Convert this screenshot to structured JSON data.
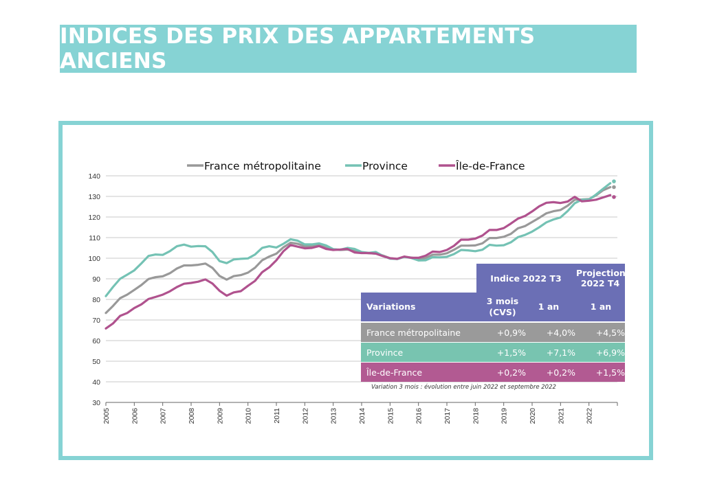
{
  "page": {
    "title": "INDICES DES PRIX DES APPARTEMENTS ANCIENS"
  },
  "colors": {
    "accent": "#86d3d4",
    "table_header": "#6b6fb5"
  },
  "chart_data": {
    "type": "line",
    "title": "",
    "xlabel": "",
    "ylabel": "",
    "x_ticks": [
      "2005",
      "2006",
      "2007",
      "2008",
      "2009",
      "2010",
      "2011",
      "2012",
      "2013",
      "2014",
      "2015",
      "2016",
      "2017",
      "2018",
      "2019",
      "2020",
      "2021",
      "2022"
    ],
    "y_ticks": [
      "30",
      "40",
      "50",
      "60",
      "70",
      "80",
      "90",
      "100",
      "110",
      "120",
      "130",
      "140"
    ],
    "xlim": [
      2005,
      2023
    ],
    "ylim": [
      30,
      140
    ],
    "grid": true,
    "legend_position": "top",
    "series": [
      {
        "name": "France métropolitaine",
        "color": "#999999",
        "points": [
          [
            2005.0,
            73.4
          ],
          [
            2005.25,
            76.8
          ],
          [
            2005.5,
            80.6
          ],
          [
            2005.75,
            82.3
          ],
          [
            2006.0,
            84.6
          ],
          [
            2006.25,
            87.0
          ],
          [
            2006.5,
            89.9
          ],
          [
            2006.75,
            90.8
          ],
          [
            2007.0,
            91.2
          ],
          [
            2007.25,
            92.7
          ],
          [
            2007.5,
            95.0
          ],
          [
            2007.75,
            96.5
          ],
          [
            2008.0,
            96.5
          ],
          [
            2008.25,
            96.8
          ],
          [
            2008.5,
            97.4
          ],
          [
            2008.75,
            95.3
          ],
          [
            2009.0,
            91.4
          ],
          [
            2009.25,
            89.6
          ],
          [
            2009.5,
            91.3
          ],
          [
            2009.75,
            91.8
          ],
          [
            2010.0,
            93.0
          ],
          [
            2010.25,
            95.4
          ],
          [
            2010.5,
            99.0
          ],
          [
            2010.75,
            100.8
          ],
          [
            2011.0,
            102.2
          ],
          [
            2011.25,
            105.3
          ],
          [
            2011.5,
            107.5
          ],
          [
            2011.75,
            107.0
          ],
          [
            2012.0,
            105.8
          ],
          [
            2012.25,
            105.8
          ],
          [
            2012.5,
            106.2
          ],
          [
            2012.75,
            105.1
          ],
          [
            2013.0,
            104.3
          ],
          [
            2013.25,
            104.0
          ],
          [
            2013.5,
            104.2
          ],
          [
            2013.75,
            103.5
          ],
          [
            2014.0,
            102.8
          ],
          [
            2014.25,
            102.4
          ],
          [
            2014.5,
            102.3
          ],
          [
            2014.75,
            101.3
          ],
          [
            2015.0,
            100.0
          ],
          [
            2015.25,
            99.6
          ],
          [
            2015.5,
            100.7
          ],
          [
            2015.75,
            100.3
          ],
          [
            2016.0,
            99.7
          ],
          [
            2016.25,
            100.1
          ],
          [
            2016.5,
            101.7
          ],
          [
            2016.75,
            101.7
          ],
          [
            2017.0,
            102.4
          ],
          [
            2017.25,
            104.1
          ],
          [
            2017.5,
            106.1
          ],
          [
            2017.75,
            106.1
          ],
          [
            2018.0,
            106.2
          ],
          [
            2018.25,
            107.2
          ],
          [
            2018.5,
            109.8
          ],
          [
            2018.75,
            109.8
          ],
          [
            2019.0,
            110.4
          ],
          [
            2019.25,
            111.8
          ],
          [
            2019.5,
            114.5
          ],
          [
            2019.75,
            115.6
          ],
          [
            2020.0,
            117.6
          ],
          [
            2020.25,
            119.6
          ],
          [
            2020.5,
            121.8
          ],
          [
            2020.75,
            122.8
          ],
          [
            2021.0,
            123.4
          ],
          [
            2021.25,
            125.5
          ],
          [
            2021.5,
            128.4
          ],
          [
            2021.75,
            128.5
          ],
          [
            2022.0,
            128.7
          ],
          [
            2022.25,
            130.5
          ],
          [
            2022.5,
            133.0
          ],
          [
            2022.75,
            134.5
          ]
        ]
      },
      {
        "name": "Province",
        "color": "#74c2b4",
        "points": [
          [
            2005.0,
            81.6
          ],
          [
            2005.25,
            86.0
          ],
          [
            2005.5,
            90.0
          ],
          [
            2005.75,
            92.0
          ],
          [
            2006.0,
            94.1
          ],
          [
            2006.25,
            97.5
          ],
          [
            2006.5,
            101.1
          ],
          [
            2006.75,
            101.8
          ],
          [
            2007.0,
            101.6
          ],
          [
            2007.25,
            103.4
          ],
          [
            2007.5,
            105.8
          ],
          [
            2007.75,
            106.6
          ],
          [
            2008.0,
            105.6
          ],
          [
            2008.25,
            105.9
          ],
          [
            2008.5,
            105.8
          ],
          [
            2008.75,
            103.0
          ],
          [
            2009.0,
            98.6
          ],
          [
            2009.25,
            97.6
          ],
          [
            2009.5,
            99.4
          ],
          [
            2009.75,
            99.7
          ],
          [
            2010.0,
            99.9
          ],
          [
            2010.25,
            101.8
          ],
          [
            2010.5,
            105.0
          ],
          [
            2010.75,
            105.8
          ],
          [
            2011.0,
            105.2
          ],
          [
            2011.25,
            107.0
          ],
          [
            2011.5,
            109.2
          ],
          [
            2011.75,
            108.5
          ],
          [
            2012.0,
            106.7
          ],
          [
            2012.25,
            106.7
          ],
          [
            2012.5,
            107.2
          ],
          [
            2012.75,
            106.2
          ],
          [
            2013.0,
            104.4
          ],
          [
            2013.25,
            104.1
          ],
          [
            2013.5,
            105.0
          ],
          [
            2013.75,
            104.5
          ],
          [
            2014.0,
            103.0
          ],
          [
            2014.25,
            102.6
          ],
          [
            2014.5,
            103.0
          ],
          [
            2014.75,
            101.1
          ],
          [
            2015.0,
            99.8
          ],
          [
            2015.25,
            99.6
          ],
          [
            2015.5,
            100.6
          ],
          [
            2015.75,
            100.1
          ],
          [
            2016.0,
            98.9
          ],
          [
            2016.25,
            99.0
          ],
          [
            2016.5,
            100.5
          ],
          [
            2016.75,
            100.4
          ],
          [
            2017.0,
            100.7
          ],
          [
            2017.25,
            102.0
          ],
          [
            2017.5,
            104.0
          ],
          [
            2017.75,
            103.8
          ],
          [
            2018.0,
            103.4
          ],
          [
            2018.25,
            104.1
          ],
          [
            2018.5,
            106.5
          ],
          [
            2018.75,
            106.1
          ],
          [
            2019.0,
            106.3
          ],
          [
            2019.25,
            107.7
          ],
          [
            2019.5,
            110.2
          ],
          [
            2019.75,
            111.3
          ],
          [
            2020.0,
            112.9
          ],
          [
            2020.25,
            115.0
          ],
          [
            2020.5,
            117.4
          ],
          [
            2020.75,
            118.8
          ],
          [
            2021.0,
            119.8
          ],
          [
            2021.25,
            122.9
          ],
          [
            2021.5,
            126.7
          ],
          [
            2021.75,
            128.4
          ],
          [
            2022.0,
            128.5
          ],
          [
            2022.25,
            130.9
          ],
          [
            2022.5,
            133.7
          ],
          [
            2022.75,
            136.4
          ]
        ]
      },
      {
        "name": "Île-de-France",
        "color": "#b0528e",
        "points": [
          [
            2005.0,
            65.9
          ],
          [
            2005.25,
            68.3
          ],
          [
            2005.5,
            72.0
          ],
          [
            2005.75,
            73.4
          ],
          [
            2006.0,
            75.8
          ],
          [
            2006.25,
            77.6
          ],
          [
            2006.5,
            80.2
          ],
          [
            2006.75,
            81.2
          ],
          [
            2007.0,
            82.3
          ],
          [
            2007.25,
            83.9
          ],
          [
            2007.5,
            86.0
          ],
          [
            2007.75,
            87.6
          ],
          [
            2008.0,
            88.0
          ],
          [
            2008.25,
            88.6
          ],
          [
            2008.5,
            89.7
          ],
          [
            2008.75,
            87.7
          ],
          [
            2009.0,
            84.2
          ],
          [
            2009.25,
            81.8
          ],
          [
            2009.5,
            83.4
          ],
          [
            2009.75,
            84.0
          ],
          [
            2010.0,
            86.6
          ],
          [
            2010.25,
            89.0
          ],
          [
            2010.5,
            93.2
          ],
          [
            2010.75,
            95.6
          ],
          [
            2011.0,
            99.0
          ],
          [
            2011.25,
            103.4
          ],
          [
            2011.5,
            106.4
          ],
          [
            2011.75,
            105.6
          ],
          [
            2012.0,
            104.8
          ],
          [
            2012.25,
            105.0
          ],
          [
            2012.5,
            105.9
          ],
          [
            2012.75,
            104.5
          ],
          [
            2013.0,
            104.0
          ],
          [
            2013.25,
            104.2
          ],
          [
            2013.5,
            104.5
          ],
          [
            2013.75,
            102.8
          ],
          [
            2014.0,
            102.5
          ],
          [
            2014.25,
            102.5
          ],
          [
            2014.5,
            102.2
          ],
          [
            2014.75,
            101.0
          ],
          [
            2015.0,
            100.0
          ],
          [
            2015.25,
            99.7
          ],
          [
            2015.5,
            100.8
          ],
          [
            2015.75,
            100.2
          ],
          [
            2016.0,
            100.2
          ],
          [
            2016.25,
            101.2
          ],
          [
            2016.5,
            103.2
          ],
          [
            2016.75,
            103.0
          ],
          [
            2017.0,
            104.0
          ],
          [
            2017.25,
            106.0
          ],
          [
            2017.5,
            109.0
          ],
          [
            2017.75,
            109.0
          ],
          [
            2018.0,
            109.5
          ],
          [
            2018.25,
            111.0
          ],
          [
            2018.5,
            113.7
          ],
          [
            2018.75,
            113.7
          ],
          [
            2019.0,
            114.6
          ],
          [
            2019.25,
            116.8
          ],
          [
            2019.5,
            119.2
          ],
          [
            2019.75,
            120.5
          ],
          [
            2020.0,
            122.7
          ],
          [
            2020.25,
            125.2
          ],
          [
            2020.5,
            126.9
          ],
          [
            2020.75,
            127.2
          ],
          [
            2021.0,
            126.8
          ],
          [
            2021.25,
            127.5
          ],
          [
            2021.5,
            129.8
          ],
          [
            2021.75,
            127.6
          ],
          [
            2022.0,
            127.9
          ],
          [
            2022.25,
            128.4
          ],
          [
            2022.5,
            129.5
          ],
          [
            2022.75,
            130.6
          ]
        ]
      }
    ],
    "projection_points": [
      {
        "series": "France métropolitaine",
        "x": 2023.0,
        "y": 134.5
      },
      {
        "series": "Province",
        "x": 2023.0,
        "y": 137.3
      },
      {
        "series": "Île-de-France",
        "x": 2023.0,
        "y": 129.7
      }
    ]
  },
  "table": {
    "header_indice": "Indice 2022 T3",
    "header_projection": "Projection 2022 T4",
    "col_variations": "Variations",
    "col_3mois": "3 mois (CVS)",
    "col_1an": "1 an",
    "col_proj_1an": "1 an",
    "rows": [
      {
        "name": "France métropolitaine",
        "v3m": "+0,9%",
        "v1a": "+4,0%",
        "proj": "+4,5%",
        "color": "#9a9a9a"
      },
      {
        "name": "Province",
        "v3m": "+1,5%",
        "v1a": "+7,1%",
        "proj": "+6,9%",
        "color": "#78c4b0"
      },
      {
        "name": "Île-de-France",
        "v3m": "+0,2%",
        "v1a": "+0,2%",
        "proj": "+1,5%",
        "color": "#b25a92"
      }
    ],
    "footnote": "Variation 3 mois : évolution entre juin 2022 et septembre 2022"
  }
}
